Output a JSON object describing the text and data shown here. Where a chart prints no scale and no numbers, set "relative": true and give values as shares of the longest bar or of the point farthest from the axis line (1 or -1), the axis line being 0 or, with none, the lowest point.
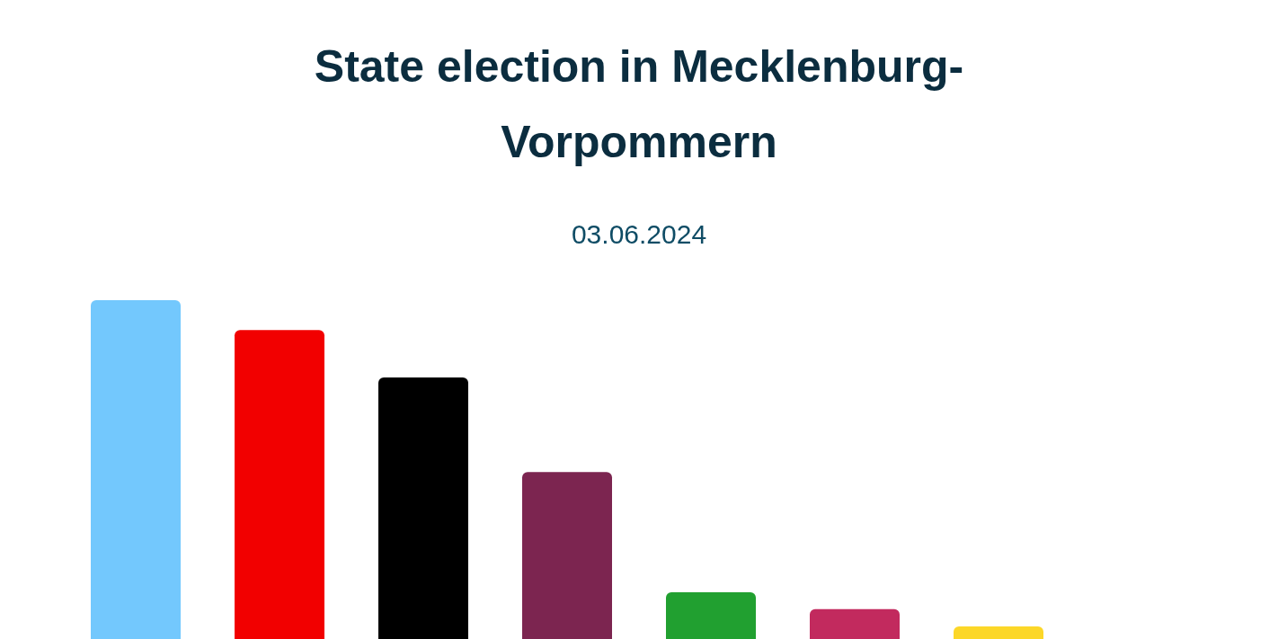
{
  "chart_data": {
    "type": "bar",
    "title": "State election in Mecklenburg-\nVorpommern",
    "subtitle": "03.06.2024",
    "categories": [
      null,
      null,
      null,
      null,
      null,
      null,
      null
    ],
    "values": [
      1,
      0.912,
      0.772,
      0.493,
      0.138,
      0.088,
      0.037
    ],
    "colors": [
      "#73c8fd",
      "#f20000",
      "#000000",
      "#7c2550",
      "#21a030",
      "#c22a5e",
      "#fcd728"
    ],
    "relative": true
  }
}
